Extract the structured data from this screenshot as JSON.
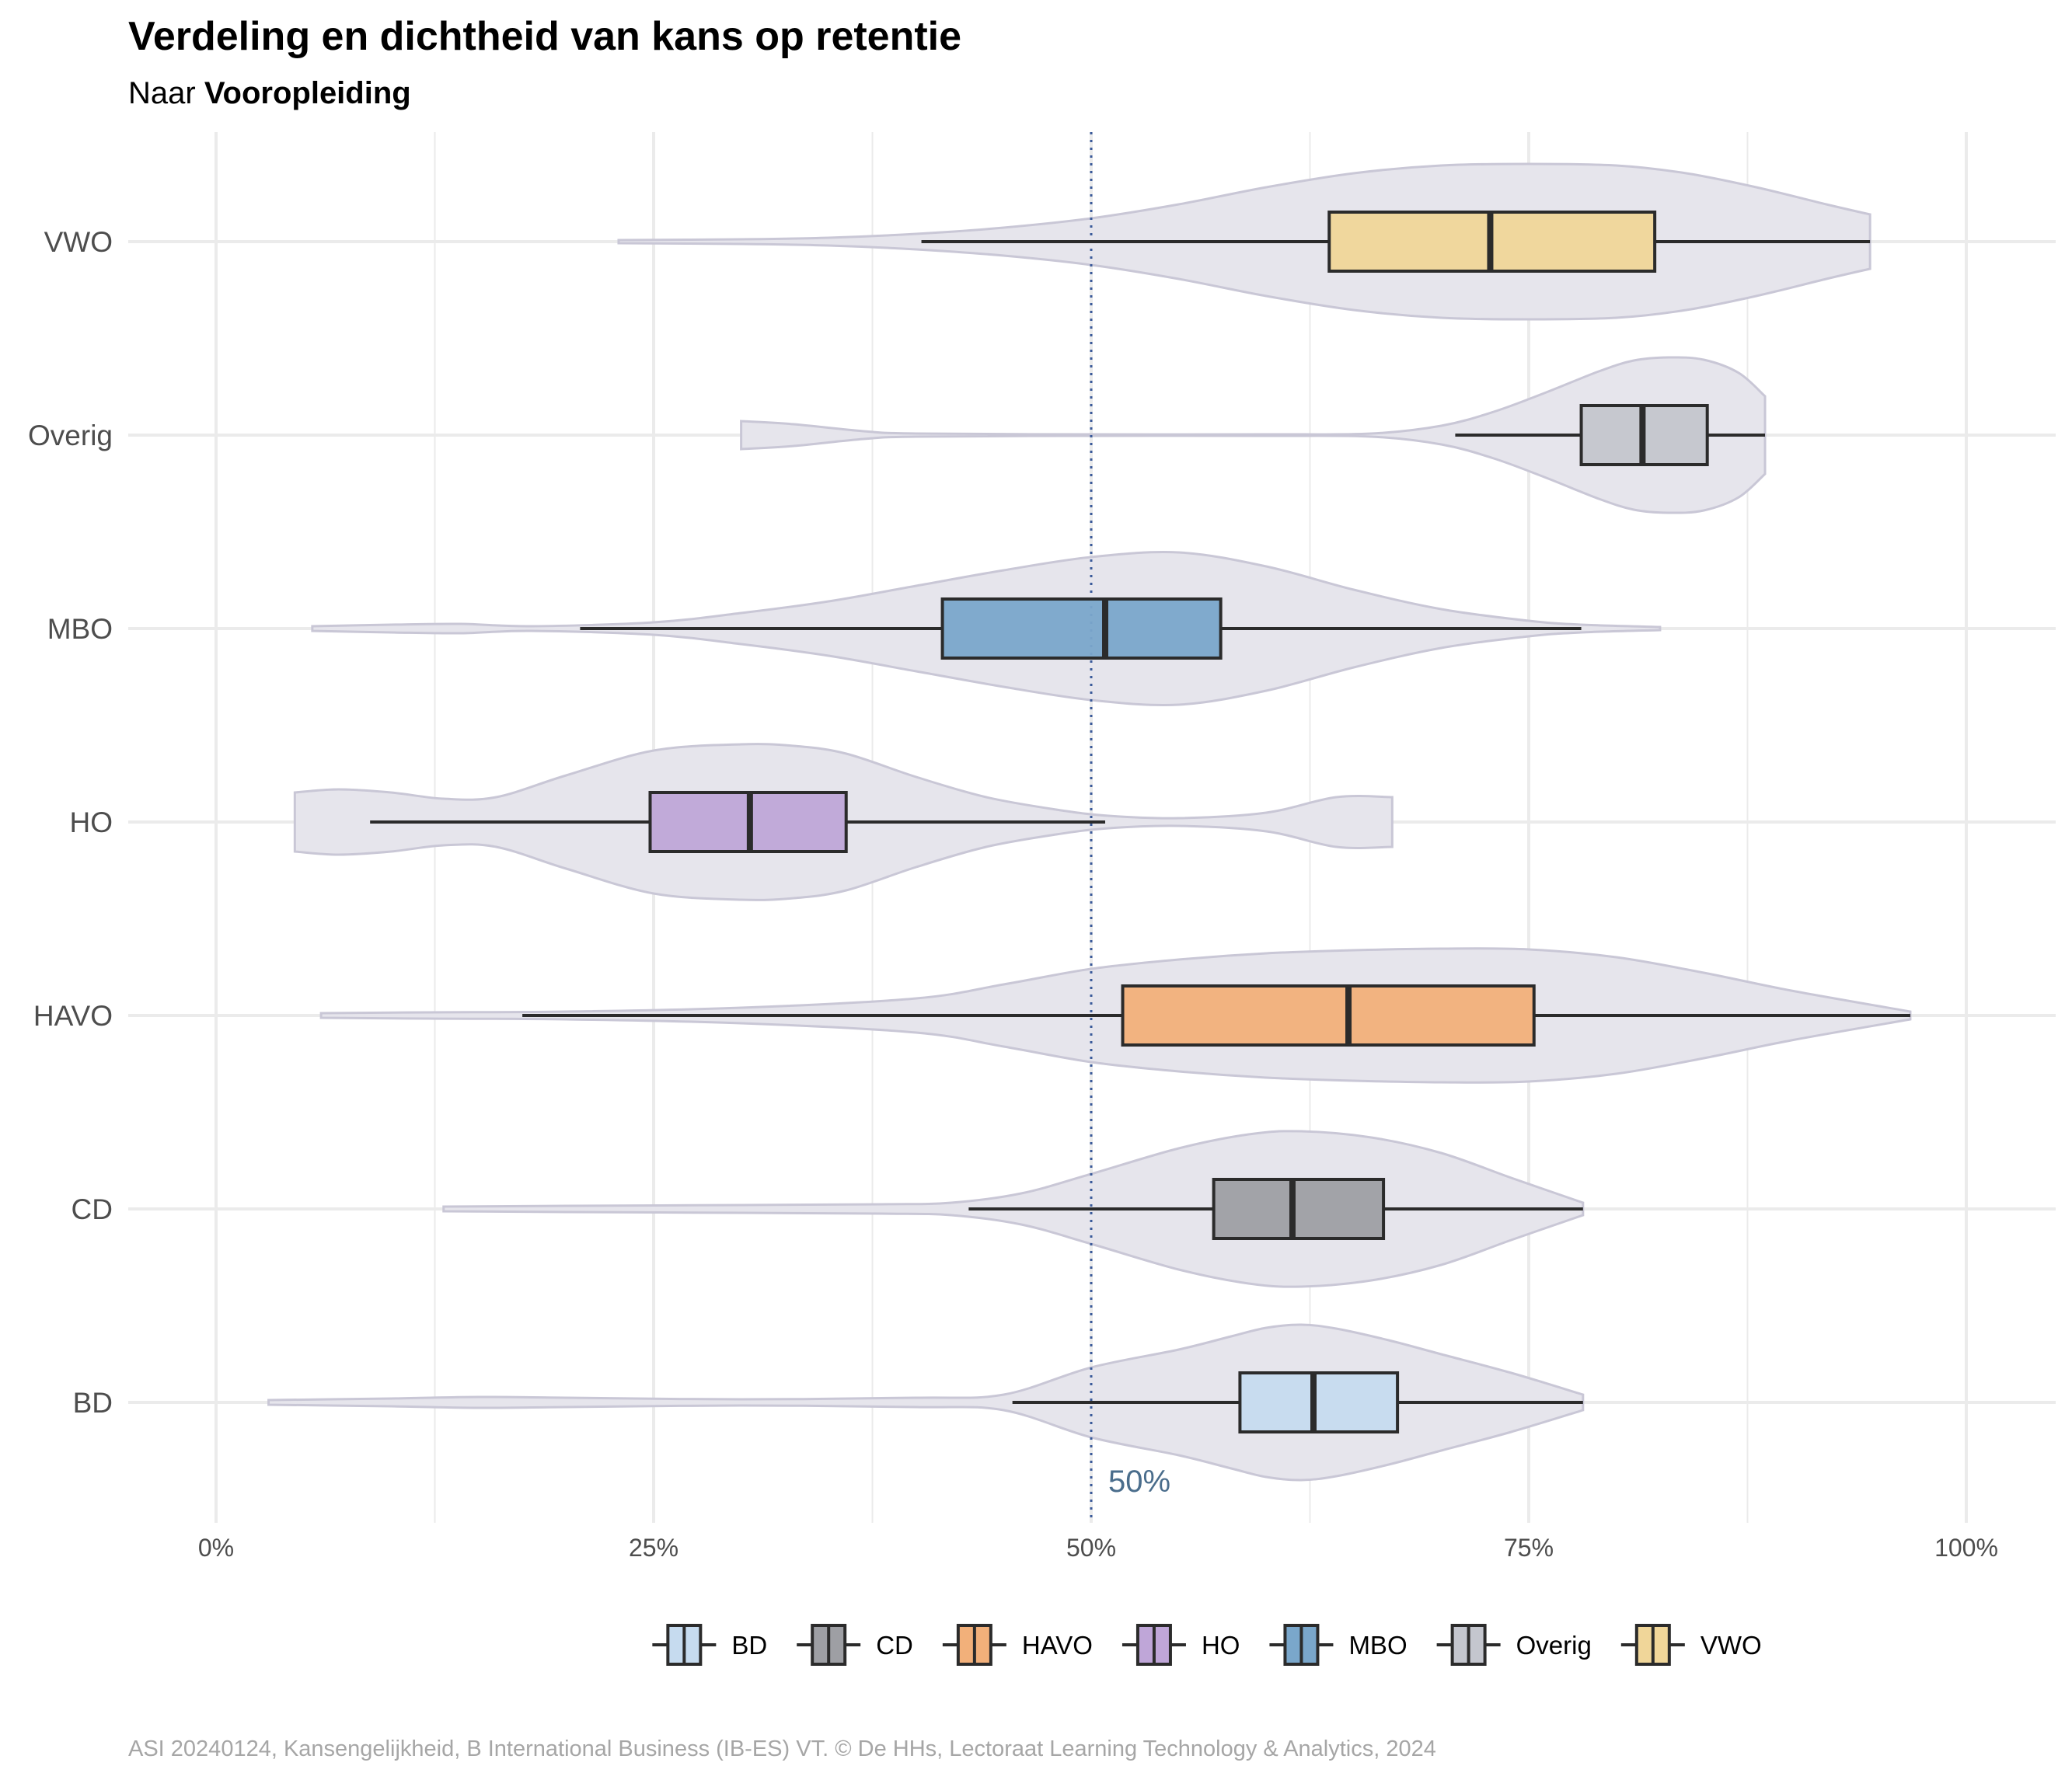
{
  "chart_data": {
    "type": "violin+boxplot",
    "orientation": "horizontal",
    "title": "Verdeling en dichtheid van kans op retentie",
    "subtitle_prefix": "Naar ",
    "subtitle_bold": "Vooropleiding",
    "caption": "ASI 20240124, Kansengelijkheid, B International Business (IB-ES) VT. © De HHs, Lectoraat Learning Technology & Analytics, 2024",
    "xlabel": "",
    "ylabel": "",
    "xlim": [
      0,
      1
    ],
    "x_ticks": [
      0,
      0.25,
      0.5,
      0.75,
      1
    ],
    "x_tick_labels": [
      "0%",
      "25%",
      "50%",
      "75%",
      "100%"
    ],
    "reference_line": {
      "value": 0.5,
      "label": "50%",
      "color": "#4a6d8c"
    },
    "grid": true,
    "legend_position": "bottom",
    "categories": [
      "BD",
      "CD",
      "HAVO",
      "HO",
      "MBO",
      "Overig",
      "VWO"
    ],
    "series": [
      {
        "name": "BD",
        "color": "#c6dbef",
        "box": {
          "whisker_low": 0.455,
          "q1": 0.585,
          "median": 0.627,
          "q3": 0.675,
          "whisker_high": 0.781
        },
        "violin_x": [
          0.03,
          0.1,
          0.15,
          0.2,
          0.3,
          0.4,
          0.45,
          0.5,
          0.55,
          0.58,
          0.6,
          0.62,
          0.64,
          0.67,
          0.7,
          0.74,
          0.781
        ],
        "violin_density": [
          0.03,
          0.05,
          0.07,
          0.06,
          0.04,
          0.06,
          0.1,
          0.45,
          0.68,
          0.85,
          0.96,
          1.0,
          0.95,
          0.8,
          0.62,
          0.38,
          0.1
        ]
      },
      {
        "name": "CD",
        "color": "#9e9fa4",
        "box": {
          "whisker_low": 0.43,
          "q1": 0.57,
          "median": 0.615,
          "q3": 0.667,
          "whisker_high": 0.781
        },
        "violin_x": [
          0.13,
          0.2,
          0.3,
          0.38,
          0.42,
          0.46,
          0.5,
          0.55,
          0.59,
          0.62,
          0.66,
          0.7,
          0.74,
          0.781
        ],
        "violin_density": [
          0.03,
          0.04,
          0.05,
          0.06,
          0.08,
          0.2,
          0.45,
          0.78,
          0.96,
          1.0,
          0.92,
          0.72,
          0.4,
          0.08
        ]
      },
      {
        "name": "HAVO",
        "color": "#f2b07a",
        "box": {
          "whisker_low": 0.175,
          "q1": 0.518,
          "median": 0.647,
          "q3": 0.753,
          "whisker_high": 0.968
        },
        "violin_x": [
          0.06,
          0.12,
          0.2,
          0.3,
          0.4,
          0.45,
          0.5,
          0.55,
          0.6,
          0.65,
          0.7,
          0.75,
          0.8,
          0.85,
          0.9,
          0.968
        ],
        "violin_density": [
          0.03,
          0.04,
          0.05,
          0.1,
          0.22,
          0.4,
          0.6,
          0.72,
          0.8,
          0.84,
          0.86,
          0.85,
          0.75,
          0.55,
          0.32,
          0.05
        ]
      },
      {
        "name": "HO",
        "color": "#bfa6d8",
        "box": {
          "whisker_low": 0.088,
          "q1": 0.248,
          "median": 0.305,
          "q3": 0.36,
          "whisker_high": 0.508
        },
        "violin_x": [
          0.045,
          0.07,
          0.1,
          0.13,
          0.16,
          0.2,
          0.25,
          0.3,
          0.33,
          0.36,
          0.4,
          0.44,
          0.48,
          0.51,
          0.55,
          0.6,
          0.64,
          0.672
        ],
        "violin_density": [
          0.38,
          0.42,
          0.38,
          0.3,
          0.32,
          0.6,
          0.92,
          1.0,
          0.98,
          0.88,
          0.58,
          0.32,
          0.16,
          0.08,
          0.05,
          0.12,
          0.32,
          0.32
        ]
      },
      {
        "name": "MBO",
        "color": "#7aa7cb",
        "box": {
          "whisker_low": 0.208,
          "q1": 0.415,
          "median": 0.508,
          "q3": 0.574,
          "whisker_high": 0.78
        },
        "violin_x": [
          0.055,
          0.1,
          0.14,
          0.18,
          0.25,
          0.3,
          0.35,
          0.4,
          0.45,
          0.5,
          0.55,
          0.6,
          0.65,
          0.7,
          0.75,
          0.78,
          0.825
        ],
        "violin_density": [
          0.03,
          0.05,
          0.06,
          0.03,
          0.08,
          0.2,
          0.35,
          0.55,
          0.75,
          0.92,
          0.98,
          0.8,
          0.5,
          0.25,
          0.1,
          0.05,
          0.02
        ]
      },
      {
        "name": "Overig",
        "color": "#c4c6ce",
        "box": {
          "whisker_low": 0.708,
          "q1": 0.78,
          "median": 0.815,
          "q3": 0.852,
          "whisker_high": 0.885
        },
        "violin_x": [
          0.3,
          0.33,
          0.37,
          0.4,
          0.5,
          0.6,
          0.66,
          0.7,
          0.73,
          0.76,
          0.79,
          0.81,
          0.83,
          0.85,
          0.87,
          0.885
        ],
        "violin_density": [
          0.18,
          0.14,
          0.05,
          0.02,
          0.01,
          0.01,
          0.02,
          0.12,
          0.3,
          0.55,
          0.82,
          0.96,
          1.0,
          0.97,
          0.8,
          0.5
        ]
      },
      {
        "name": "VWO",
        "color": "#f0d699",
        "box": {
          "whisker_low": 0.403,
          "q1": 0.636,
          "median": 0.728,
          "q3": 0.822,
          "whisker_high": 0.945
        },
        "violin_x": [
          0.23,
          0.3,
          0.35,
          0.4,
          0.45,
          0.5,
          0.55,
          0.6,
          0.65,
          0.7,
          0.75,
          0.8,
          0.84,
          0.88,
          0.92,
          0.945
        ],
        "violin_density": [
          0.02,
          0.03,
          0.05,
          0.1,
          0.18,
          0.3,
          0.48,
          0.7,
          0.88,
          0.98,
          1.0,
          0.98,
          0.88,
          0.7,
          0.48,
          0.35
        ]
      }
    ],
    "colors": {
      "violin_fill": "#e6e5ec",
      "violin_stroke": "#c9c7d6",
      "box_stroke": "#2b2b2b",
      "grid": "#ebebeb"
    }
  }
}
